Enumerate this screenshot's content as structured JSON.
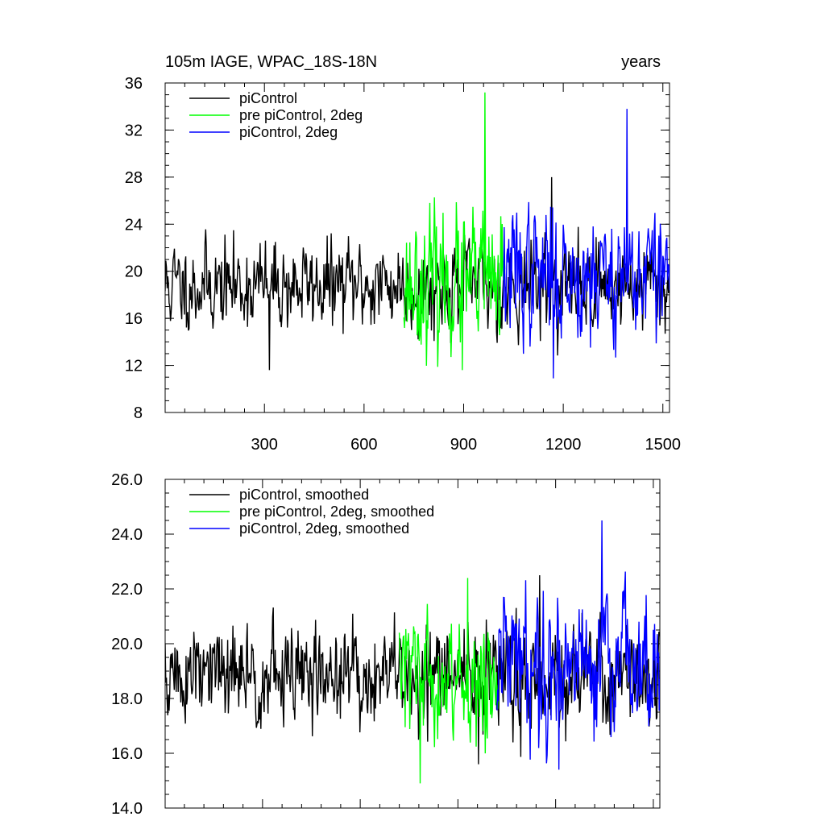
{
  "chart_data": [
    {
      "type": "line",
      "title": "105m IAGE, WPAC_18S-18N",
      "units_label": "years",
      "xlim": [
        1,
        1520
      ],
      "ylim": [
        8,
        36
      ],
      "x_ticks": [
        300,
        600,
        900,
        1200,
        1500
      ],
      "x_tick_labels": [
        "300",
        "600",
        "900",
        "1200",
        "1500"
      ],
      "y_ticks": [
        8,
        12,
        16,
        20,
        24,
        28,
        32,
        36
      ],
      "y_tick_labels": [
        "8",
        "12",
        "16",
        "20",
        "24",
        "28",
        "32",
        "36"
      ],
      "legend_position": "top-left",
      "series": [
        {
          "name": "piControl",
          "color": "#000000",
          "x_start": 1,
          "x_end": 1520,
          "mean": 18.8,
          "noise": 2.2,
          "min": 11.6,
          "max": 28.0,
          "seed": 11
        },
        {
          "name": "pre piControl, 2deg",
          "color": "#00ff00",
          "x_start": 720,
          "x_end": 1025,
          "mean": 19.0,
          "noise": 3.3,
          "min": 11.6,
          "max": 35.2,
          "seed": 23
        },
        {
          "name": "piControl, 2deg",
          "color": "#0000ff",
          "x_start": 1020,
          "x_end": 1520,
          "mean": 19.8,
          "noise": 3.3,
          "min": 10.9,
          "max": 33.8,
          "seed": 37
        }
      ]
    },
    {
      "type": "line",
      "xlim": [
        1,
        1520
      ],
      "ylim": [
        14.0,
        26.0
      ],
      "x_ticks": [
        300,
        600,
        900,
        1200,
        1500
      ],
      "y_ticks": [
        14.0,
        16.0,
        18.0,
        20.0,
        22.0,
        24.0,
        26.0
      ],
      "y_tick_labels": [
        "14.0",
        "16.0",
        "18.0",
        "20.0",
        "22.0",
        "24.0",
        "26.0"
      ],
      "legend_position": "top-left",
      "series": [
        {
          "name": "piControl, smoothed",
          "color": "#000000",
          "x_start": 1,
          "x_end": 1520,
          "mean": 18.8,
          "noise": 1.1,
          "min": 15.6,
          "max": 22.5,
          "seed": 51
        },
        {
          "name": "pre piControl, 2deg, smoothed",
          "color": "#00ff00",
          "x_start": 720,
          "x_end": 1025,
          "mean": 18.7,
          "noise": 1.3,
          "min": 14.9,
          "max": 22.4,
          "seed": 63
        },
        {
          "name": "piControl, 2deg, smoothed",
          "color": "#0000ff",
          "x_start": 1020,
          "x_end": 1520,
          "mean": 19.4,
          "noise": 1.5,
          "min": 15.4,
          "max": 24.5,
          "seed": 79
        }
      ]
    }
  ]
}
